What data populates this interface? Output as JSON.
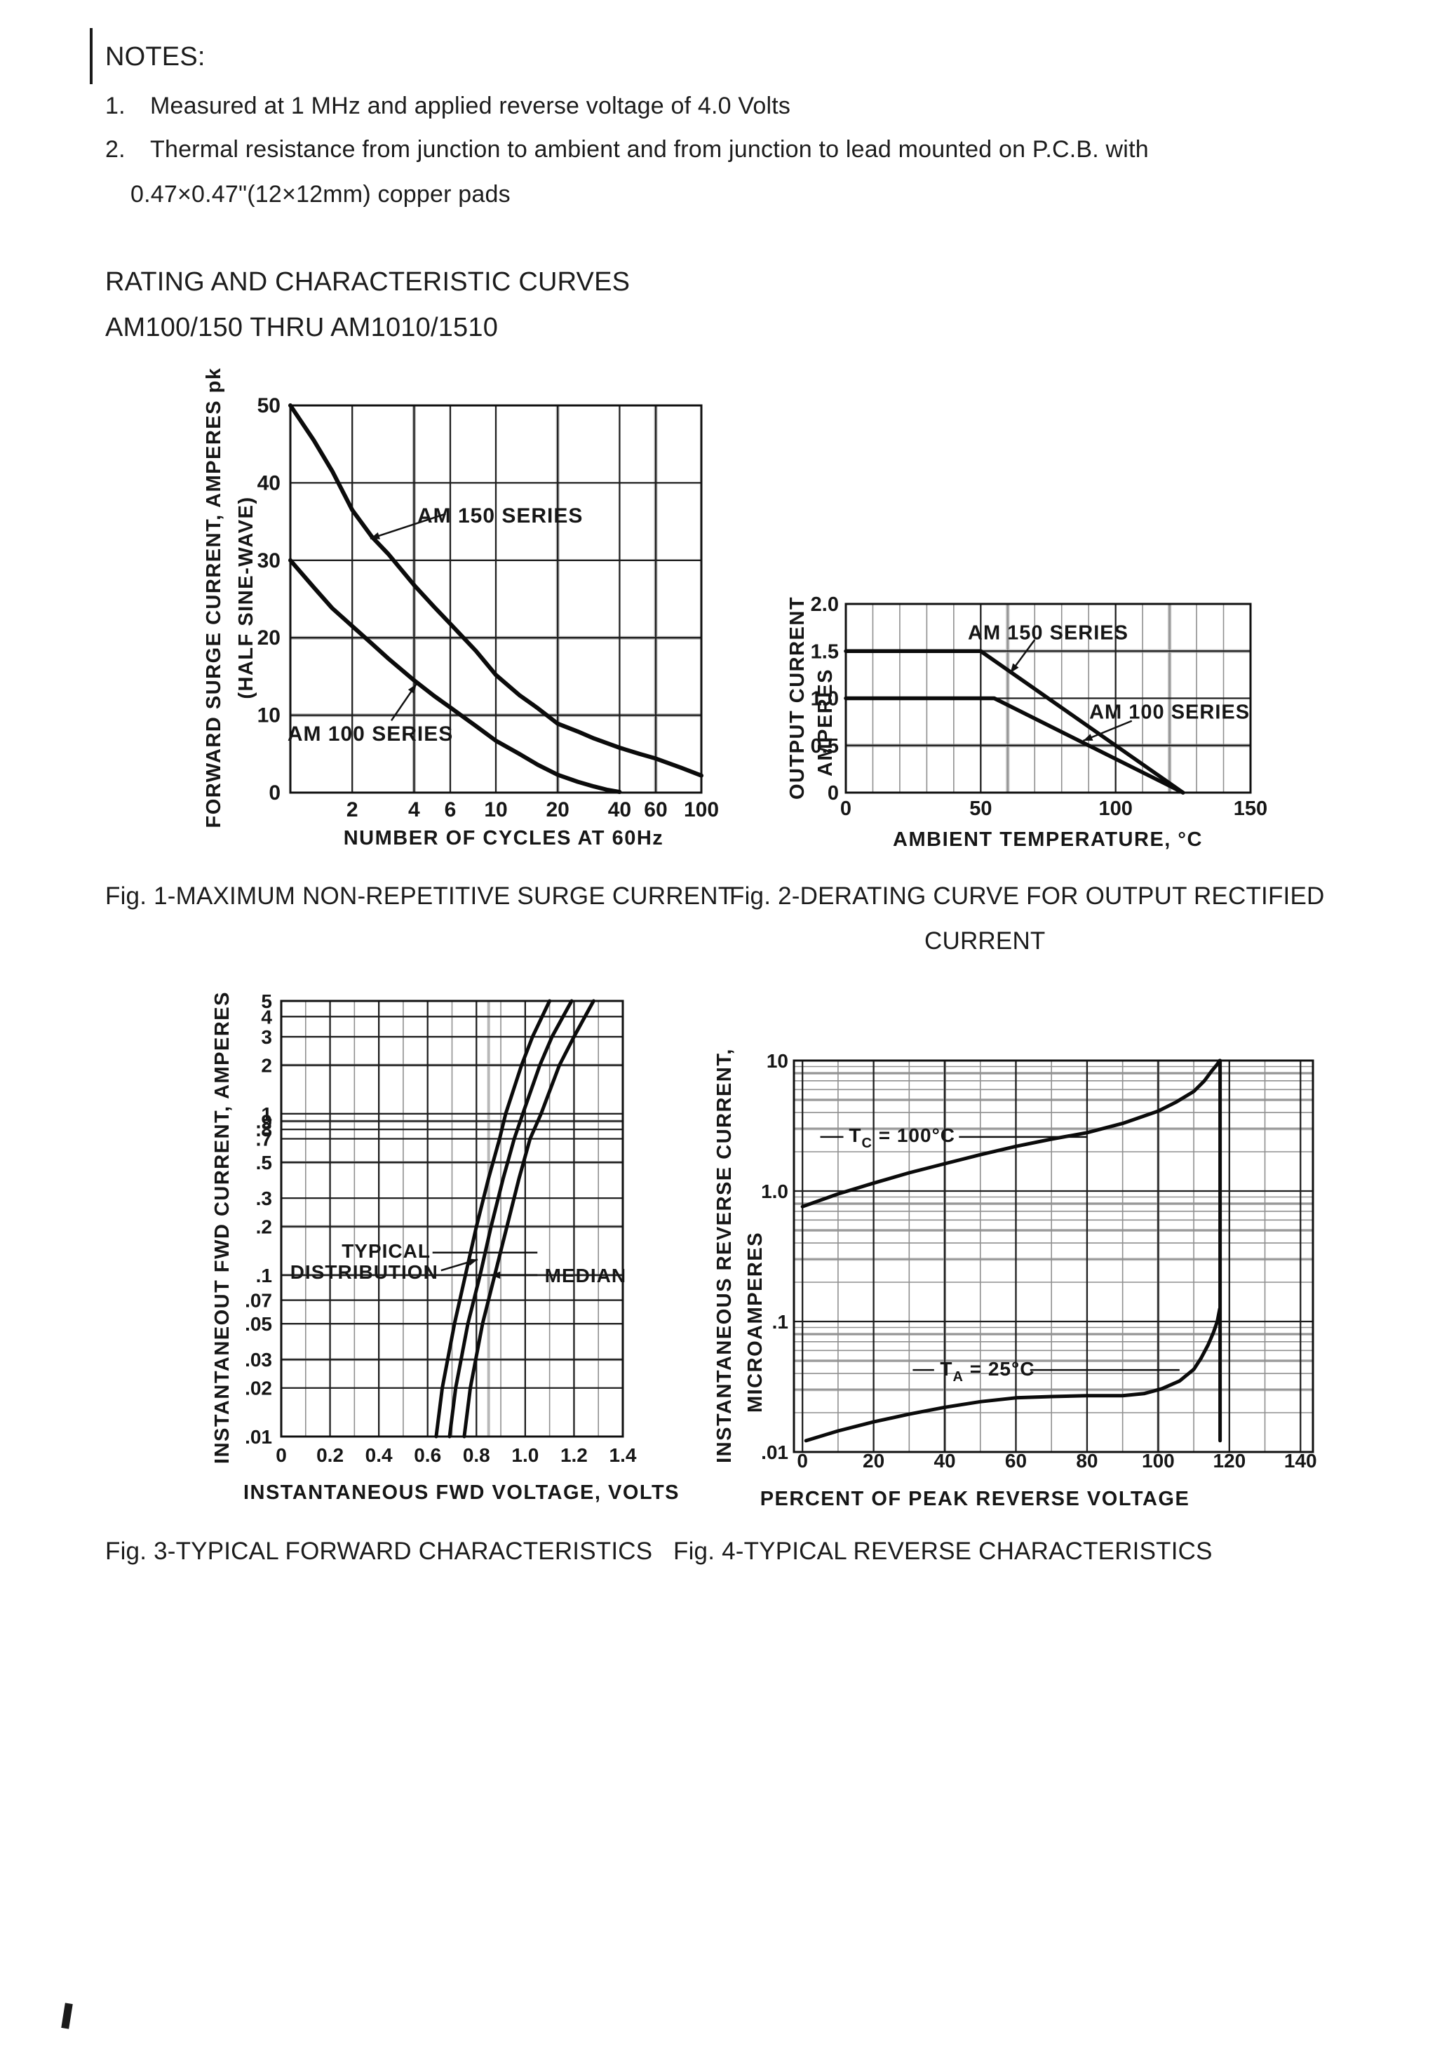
{
  "page": {
    "bg": "#ffffff",
    "ink": "#1c1c1c"
  },
  "notes": {
    "heading": "NOTES:",
    "n1_num": "1.",
    "n1_text": "Measured at 1 MHz and applied reverse voltage of 4.0 Volts",
    "n2_num": "2.",
    "n2_line1": "Thermal resistance from junction to ambient and from junction to lead mounted on P.C.B. with",
    "n2_line2": "0.47×0.47\"(12×12mm) copper pads"
  },
  "section": {
    "title": "RATING AND CHARACTERISTIC CURVES",
    "subtitle": "AM100/150 THRU AM1010/1510"
  },
  "captions": {
    "fig1": "Fig. 1-MAXIMUM NON-REPETITIVE SURGE CURRENT",
    "fig2_line1": "Fig. 2-DERATING CURVE FOR OUTPUT RECTIFIED",
    "fig2_line2": "CURRENT",
    "fig3": "Fig. 3-TYPICAL FORWARD CHARACTERISTICS",
    "fig4": "Fig. 4-TYPICAL REVERSE CHARACTERISTICS"
  },
  "chart_data": [
    {
      "id": "fig1",
      "type": "line",
      "title": "Fig. 1-MAXIMUM NON-REPETITIVE SURGE CURRENT",
      "x": {
        "log": true,
        "min": 1,
        "max": 100,
        "label": "NUMBER OF CYCLES AT 60Hz",
        "ticks_v": [
          2,
          4,
          6,
          10,
          20,
          40,
          60,
          100
        ],
        "ticks_t": [
          "2",
          "4",
          "6",
          "10",
          "20",
          "40",
          "60",
          "100"
        ]
      },
      "y": {
        "log": false,
        "min": 0,
        "max": 50,
        "label_lines": [
          "FORWARD SURGE CURRENT, AMPERES pk",
          "(HALF SINE-WAVE)"
        ],
        "ticks_v": [
          0,
          10,
          20,
          30,
          40,
          50
        ],
        "ticks_t": [
          "0",
          "10",
          "20",
          "30",
          "40",
          "50"
        ]
      },
      "grid": {
        "x_major": [
          2,
          4,
          6,
          10,
          20,
          40,
          60,
          100
        ],
        "x_minor": [],
        "y_major": [
          10,
          20,
          30,
          40
        ],
        "y_minor": [],
        "gray_x": [
          4,
          20,
          60
        ],
        "gray_y": [
          10,
          20
        ]
      },
      "series": [
        {
          "name": "AM 150 SERIES",
          "points": [
            [
              1,
              50
            ],
            [
              1.3,
              45.5
            ],
            [
              1.6,
              41.5
            ],
            [
              2,
              36.5
            ],
            [
              2.5,
              33
            ],
            [
              3,
              30.8
            ],
            [
              4,
              26.8
            ],
            [
              5,
              24
            ],
            [
              6,
              21.8
            ],
            [
              8,
              18.3
            ],
            [
              10,
              15.2
            ],
            [
              13,
              12.6
            ],
            [
              16,
              10.9
            ],
            [
              20,
              8.9
            ],
            [
              25,
              7.9
            ],
            [
              30,
              7
            ],
            [
              40,
              5.8
            ],
            [
              50,
              5
            ],
            [
              60,
              4.4
            ],
            [
              80,
              3.2
            ],
            [
              100,
              2.2
            ]
          ]
        },
        {
          "name": "AM 100 SERIES",
          "points": [
            [
              1,
              30
            ],
            [
              1.3,
              26.5
            ],
            [
              1.6,
              23.8
            ],
            [
              2,
              21.5
            ],
            [
              2.5,
              19.2
            ],
            [
              3,
              17.3
            ],
            [
              4,
              14.5
            ],
            [
              5,
              12.5
            ],
            [
              6,
              11
            ],
            [
              8,
              8.6
            ],
            [
              10,
              6.7
            ],
            [
              13,
              5
            ],
            [
              16,
              3.6
            ],
            [
              20,
              2.3
            ],
            [
              25,
              1.4
            ],
            [
              30,
              0.8
            ],
            [
              35,
              0.35
            ],
            [
              40,
              0.08
            ]
          ]
        }
      ],
      "annotations": [
        {
          "text": "AM 150 SERIES",
          "x": 10.5,
          "y": 35.8
        },
        {
          "text": "AM 100 SERIES",
          "x": 2.45,
          "y": 7.6
        }
      ],
      "leaders": [
        {
          "from": [
            5.7,
            36
          ],
          "to": [
            2.45,
            32.8
          ],
          "head": true
        },
        {
          "from": [
            3.1,
            9.3
          ],
          "to": [
            4.1,
            14
          ],
          "head": true
        }
      ]
    },
    {
      "id": "fig2",
      "type": "line",
      "title": "Fig. 2-DERATING CURVE FOR OUTPUT RECTIFIED CURRENT",
      "x": {
        "log": false,
        "min": 0,
        "max": 150,
        "label": "AMBIENT TEMPERATURE, °C",
        "ticks_v": [
          0,
          50,
          100,
          150
        ],
        "ticks_t": [
          "0",
          "50",
          "100",
          "150"
        ]
      },
      "y": {
        "log": false,
        "min": 0,
        "max": 2,
        "label_lines": [
          "OUTPUT CURRENT",
          "AMPERES"
        ],
        "ticks_v": [
          0,
          0.5,
          1,
          1.5,
          2
        ],
        "ticks_t": [
          "0",
          "0.5",
          "1.0",
          "1.5",
          "2.0"
        ]
      },
      "grid": {
        "x_major": [
          50,
          100
        ],
        "x_minor": [
          10,
          20,
          30,
          40,
          60,
          70,
          80,
          90,
          110,
          120,
          130,
          140
        ],
        "y_major": [
          0.5,
          1,
          1.5
        ],
        "y_minor": [],
        "gray_x": [
          60,
          120
        ],
        "gray_y": [
          0.5,
          1.5
        ]
      },
      "series": [
        {
          "name": "AM 150 SERIES",
          "points": [
            [
              0,
              1.5
            ],
            [
              50,
              1.5
            ],
            [
              125,
              0
            ]
          ]
        },
        {
          "name": "AM 100 SERIES",
          "points": [
            [
              0,
              1
            ],
            [
              55,
              1
            ],
            [
              125,
              0
            ]
          ]
        }
      ],
      "annotations": [
        {
          "text": "AM 150 SERIES",
          "x": 75,
          "y": 1.7
        },
        {
          "text": "AM 100 SERIES",
          "x": 120,
          "y": 0.86
        }
      ],
      "leaders": [
        {
          "from": [
            70,
            1.62
          ],
          "to": [
            61,
            1.27
          ],
          "head": true
        },
        {
          "from": [
            106,
            0.76
          ],
          "to": [
            88,
            0.55
          ],
          "head": true
        }
      ]
    },
    {
      "id": "fig3",
      "type": "line",
      "title": "Fig. 3-TYPICAL FORWARD CHARACTERISTICS",
      "x": {
        "log": false,
        "min": 0,
        "max": 1.4,
        "label": "INSTANTANEOUS FWD VOLTAGE, VOLTS",
        "ticks_v": [
          0,
          0.2,
          0.4,
          0.6,
          0.8,
          1,
          1.2,
          1.4
        ],
        "ticks_t": [
          "0",
          "0.2",
          "0.4",
          "0.6",
          "0.8",
          "1.0",
          "1.2",
          "1.4"
        ]
      },
      "y": {
        "log": true,
        "min": 0.01,
        "max": 5,
        "label_lines": [
          "INSTANTANEOUT FWD CURRENT, AMPERES"
        ],
        "ticks_v": [
          5,
          4,
          3,
          2,
          1,
          0.9,
          0.8,
          0.7,
          0.5,
          0.3,
          0.2,
          0.1,
          0.07,
          0.05,
          0.03,
          0.02,
          0.01
        ],
        "ticks_t": [
          "5",
          "4",
          "3",
          "2",
          "1",
          ".9",
          ".8",
          ".7",
          ".5",
          ".3",
          ".2",
          ".1",
          ".07",
          ".05",
          ".03",
          ".02",
          ".01"
        ]
      },
      "grid": {
        "x_major": [
          0.2,
          0.4,
          0.6,
          0.8,
          1,
          1.2
        ],
        "x_minor": [
          0.1,
          0.3,
          0.5,
          0.7,
          0.9,
          1.1,
          1.3
        ],
        "y_major": [
          0.02,
          0.03,
          0.05,
          0.07,
          0.1,
          0.2,
          0.3,
          0.5,
          0.7,
          0.8,
          0.9,
          1,
          2,
          3,
          4
        ],
        "y_minor": [],
        "gray_x": [
          0.85
        ],
        "gray_y": [
          0.03,
          0.1,
          0.2,
          0.5,
          0.9,
          2
        ]
      },
      "series": [
        {
          "name": "distribution-low",
          "points": [
            [
              0.635,
              0.01
            ],
            [
              0.66,
              0.02
            ],
            [
              0.71,
              0.05
            ],
            [
              0.755,
              0.1
            ],
            [
              0.8,
              0.2
            ],
            [
              0.85,
              0.4
            ],
            [
              0.895,
              0.7
            ],
            [
              0.92,
              1
            ],
            [
              0.985,
              2
            ],
            [
              1.03,
              3
            ],
            [
              1.1,
              5
            ]
          ]
        },
        {
          "name": "median",
          "points": [
            [
              0.69,
              0.01
            ],
            [
              0.715,
              0.02
            ],
            [
              0.765,
              0.05
            ],
            [
              0.815,
              0.1
            ],
            [
              0.86,
              0.2
            ],
            [
              0.91,
              0.4
            ],
            [
              0.955,
              0.7
            ],
            [
              0.99,
              1
            ],
            [
              1.06,
              2
            ],
            [
              1.11,
              3
            ],
            [
              1.19,
              5
            ]
          ]
        },
        {
          "name": "distribution-high",
          "points": [
            [
              0.75,
              0.01
            ],
            [
              0.775,
              0.02
            ],
            [
              0.825,
              0.05
            ],
            [
              0.875,
              0.1
            ],
            [
              0.925,
              0.2
            ],
            [
              0.975,
              0.4
            ],
            [
              1.02,
              0.7
            ],
            [
              1.065,
              1
            ],
            [
              1.14,
              2
            ],
            [
              1.2,
              3
            ],
            [
              1.28,
              5
            ]
          ]
        }
      ],
      "annotations": [
        {
          "text": "TYPICAL",
          "x": 0.43,
          "y": 0.142
        },
        {
          "text": "DISTRIBUTION",
          "x": 0.34,
          "y": 0.105
        },
        {
          "text": "MEDIAN",
          "x": 1.08,
          "y": 0.1,
          "anchor": "start"
        }
      ],
      "leaders": [
        {
          "from": [
            1.05,
            0.1
          ],
          "to": [
            0.86,
            0.1
          ],
          "head": true
        },
        {
          "from": [
            0.655,
            0.107
          ],
          "to": [
            0.805,
            0.125
          ],
          "head": true
        },
        {
          "from": [
            0.62,
            0.138
          ],
          "to": [
            1.05,
            0.138
          ],
          "head": false
        }
      ]
    },
    {
      "id": "fig4",
      "type": "line",
      "title": "Fig. 4-TYPICAL REVERSE CHARACTERISTICS",
      "x": {
        "log": false,
        "min": -2.4,
        "max": 143.5,
        "label": "PERCENT OF PEAK REVERSE VOLTAGE",
        "ticks_v": [
          0,
          20,
          40,
          60,
          80,
          100,
          120,
          140
        ],
        "ticks_t": [
          "0",
          "20",
          "40",
          "60",
          "80",
          "100",
          "120",
          "140"
        ]
      },
      "y": {
        "log": true,
        "min": 0.01,
        "max": 10,
        "label_lines": [
          "INSTANTANEOUS REVERSE CURRENT,",
          "MICROAMPERES"
        ],
        "ticks_v": [
          10,
          1,
          0.1,
          0.01
        ],
        "ticks_t": [
          "10",
          "1.0",
          ".1",
          ".01"
        ]
      },
      "grid": {
        "x_major": [
          0,
          20,
          40,
          60,
          80,
          100,
          120,
          140
        ],
        "x_minor": [
          10,
          30,
          50,
          70,
          90,
          110,
          130
        ],
        "y_major": [
          0.1,
          1
        ],
        "y_minor": [
          0.02,
          0.03,
          0.04,
          0.05,
          0.06,
          0.07,
          0.08,
          0.09,
          0.2,
          0.3,
          0.4,
          0.5,
          0.6,
          0.7,
          0.8,
          0.9,
          2,
          3,
          4,
          5,
          6,
          7,
          8,
          9
        ],
        "gray_x": [
          40,
          100
        ],
        "gray_y": [
          0.03,
          0.05,
          0.08,
          0.3,
          0.5,
          0.8,
          3,
          5,
          8
        ]
      },
      "series": [
        {
          "name": "TC-100C",
          "points": [
            [
              0,
              0.76
            ],
            [
              10,
              0.95
            ],
            [
              20,
              1.15
            ],
            [
              30,
              1.38
            ],
            [
              40,
              1.62
            ],
            [
              50,
              1.9
            ],
            [
              60,
              2.2
            ],
            [
              70,
              2.5
            ],
            [
              80,
              2.8
            ],
            [
              90,
              3.3
            ],
            [
              100,
              4.1
            ],
            [
              105,
              4.8
            ],
            [
              110,
              5.8
            ],
            [
              113,
              7
            ],
            [
              115,
              8.3
            ],
            [
              116.5,
              9.3
            ],
            [
              117.3,
              10
            ]
          ]
        },
        {
          "name": "TA-25C",
          "points": [
            [
              1,
              0.0122
            ],
            [
              10,
              0.0145
            ],
            [
              20,
              0.017
            ],
            [
              30,
              0.0195
            ],
            [
              40,
              0.022
            ],
            [
              50,
              0.0243
            ],
            [
              60,
              0.026
            ],
            [
              70,
              0.0266
            ],
            [
              80,
              0.027
            ],
            [
              90,
              0.027
            ],
            [
              96,
              0.028
            ],
            [
              101,
              0.0305
            ],
            [
              106,
              0.035
            ],
            [
              110,
              0.043
            ],
            [
              112,
              0.052
            ],
            [
              114,
              0.066
            ],
            [
              115.5,
              0.082
            ],
            [
              116.6,
              0.1
            ],
            [
              117.3,
              0.125
            ]
          ]
        },
        {
          "name": "breakdown-asymptote",
          "points": [
            [
              117.4,
              0.0122
            ],
            [
              117.4,
              10
            ]
          ]
        }
      ],
      "annotations": [
        {
          "pre": "T",
          "sub": "C",
          "post": " = 100°C",
          "x": 28,
          "y": 2.7
        },
        {
          "pre": "T",
          "sub": "A",
          "post": " = 25°C",
          "x": 52,
          "y": 0.0435
        }
      ],
      "leaders": [
        {
          "from": [
            5,
            2.6
          ],
          "to": [
            11.5,
            2.6
          ],
          "head": false
        },
        {
          "from": [
            44,
            2.6
          ],
          "to": [
            80,
            2.6
          ],
          "head": false
        },
        {
          "from": [
            31,
            0.0425
          ],
          "to": [
            37,
            0.0425
          ],
          "head": false
        },
        {
          "from": [
            64,
            0.0425
          ],
          "to": [
            106,
            0.0425
          ],
          "head": false
        }
      ]
    }
  ]
}
